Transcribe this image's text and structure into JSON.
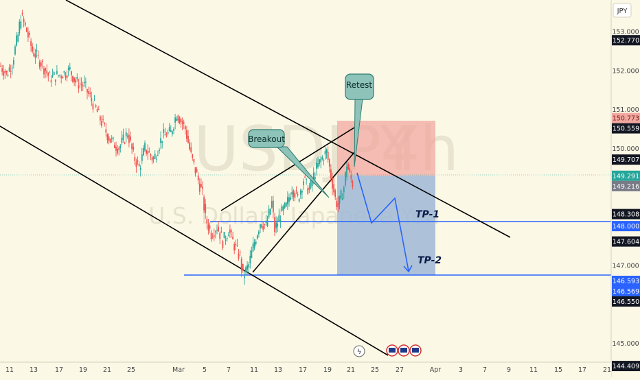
{
  "symbol": "USDJPY",
  "timeframe": "4h",
  "instrument_name": "U.S. Dollar / Japanese Yen",
  "currency": "JPY",
  "annotations": {
    "breakout": "Breakout",
    "retest": "Retest",
    "tp1": "TP-1",
    "tp2": "TP-2"
  },
  "colors": {
    "background": "#fbf8e6",
    "candle_up": "#26a69a",
    "candle_down": "#ef5350",
    "stop_zone": "#f1a8a0",
    "target_zone": "#9fb8d6",
    "projection": "#2962ff",
    "trendline": "#000000"
  },
  "chart_data": {
    "type": "candlestick",
    "y_axis_ticks": [
      "153.000",
      "152.000",
      "151.000",
      "150.000",
      "147.000",
      "145.000"
    ],
    "x_axis_labels": [
      "11",
      "13",
      "17",
      "19",
      "21",
      "25",
      "Mar",
      "5",
      "7",
      "11",
      "13",
      "17",
      "19",
      "21",
      "25",
      "27",
      "Apr",
      "3",
      "7",
      "9",
      "11",
      "15",
      "17",
      "21"
    ],
    "price_labels": [
      {
        "value": "152.770",
        "style": "dark"
      },
      {
        "value": "150.773",
        "style": "red"
      },
      {
        "value": "150.559",
        "style": "dark"
      },
      {
        "value": "149.707",
        "style": "dark"
      },
      {
        "value": "149.291",
        "style": "green"
      },
      {
        "value": "149.216",
        "style": "gray"
      },
      {
        "value": "148.308",
        "style": "dark"
      },
      {
        "value": "148.000",
        "style": "blue"
      },
      {
        "value": "147.604",
        "style": "dark"
      },
      {
        "value": "146.593",
        "style": "blue"
      },
      {
        "value": "146.569",
        "style": "blue"
      },
      {
        "value": "146.550",
        "style": "dark"
      },
      {
        "value": "144.409",
        "style": "dark"
      }
    ],
    "trade_setup": {
      "entry": 149.291,
      "stop": 150.773,
      "tp1": 148.0,
      "tp2": 146.593
    },
    "ohlc_path": [
      [
        0,
        152.1
      ],
      [
        4,
        151.9
      ],
      [
        8,
        152.2
      ],
      [
        12,
        152.9
      ],
      [
        14,
        153.4
      ],
      [
        18,
        153.0
      ],
      [
        22,
        152.5
      ],
      [
        28,
        152.2
      ],
      [
        34,
        151.8
      ],
      [
        42,
        151.9
      ],
      [
        48,
        152.0
      ],
      [
        52,
        151.7
      ],
      [
        58,
        151.6
      ],
      [
        66,
        151.0
      ],
      [
        72,
        150.5
      ],
      [
        76,
        150.2
      ],
      [
        82,
        150.0
      ],
      [
        88,
        150.4
      ],
      [
        92,
        149.8
      ],
      [
        96,
        149.5
      ],
      [
        100,
        150.0
      ],
      [
        106,
        149.7
      ],
      [
        112,
        150.3
      ],
      [
        118,
        150.4
      ],
      [
        122,
        150.9
      ],
      [
        128,
        150.5
      ],
      [
        132,
        149.8
      ],
      [
        136,
        149.3
      ],
      [
        140,
        148.8
      ],
      [
        142,
        148.2
      ],
      [
        146,
        147.8
      ],
      [
        150,
        148.0
      ],
      [
        154,
        147.6
      ],
      [
        158,
        147.9
      ],
      [
        162,
        147.5
      ],
      [
        166,
        147.2
      ],
      [
        168,
        146.7
      ],
      [
        172,
        147.0
      ],
      [
        176,
        147.6
      ],
      [
        180,
        148.1
      ],
      [
        184,
        148.0
      ],
      [
        188,
        148.6
      ],
      [
        190,
        147.9
      ],
      [
        194,
        148.3
      ],
      [
        198,
        148.5
      ],
      [
        202,
        149.0
      ],
      [
        206,
        148.7
      ],
      [
        210,
        149.2
      ],
      [
        214,
        148.9
      ],
      [
        218,
        149.4
      ],
      [
        222,
        149.7
      ],
      [
        226,
        149.9
      ],
      [
        228,
        149.5
      ],
      [
        232,
        148.7
      ],
      [
        234,
        148.5
      ],
      [
        238,
        149.0
      ],
      [
        240,
        149.6
      ],
      [
        242,
        149.3
      ],
      [
        244,
        149.1
      ]
    ]
  }
}
